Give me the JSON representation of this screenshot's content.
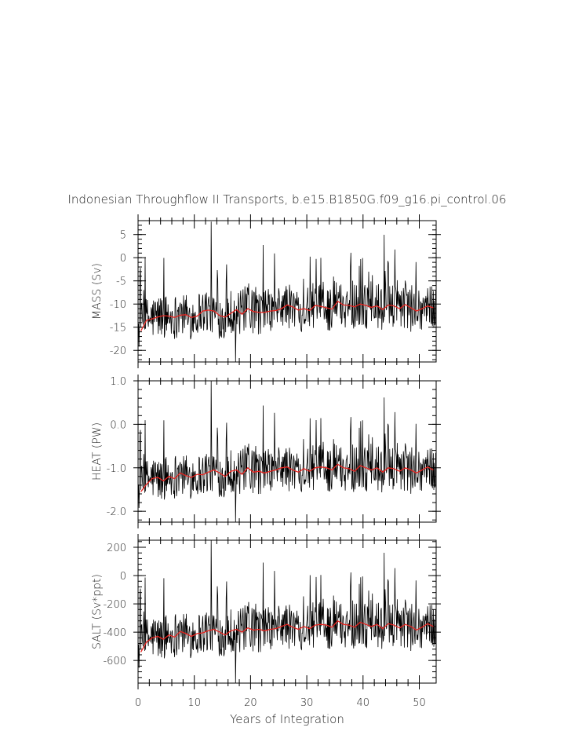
{
  "chart_data": {
    "type": "line",
    "title": "Indonesian Throughflow II Transports, b.e15.B1850G.f09_g16.pi_control.06",
    "xlabel": "Years of Integration",
    "xlim": [
      0,
      53
    ],
    "xticks": [
      "0",
      "10",
      "20",
      "30",
      "40",
      "50"
    ],
    "colors": {
      "monthly": "#000000",
      "annual": "#e8231f"
    },
    "panels": [
      {
        "ylabel": "MASS (Sv)",
        "ylim": [
          -22.5,
          8
        ],
        "yticks": [
          "5",
          "0",
          "-5",
          "-10",
          "-15",
          "-20"
        ],
        "ytick_values": [
          5,
          0,
          -5,
          -10,
          -15,
          -20
        ],
        "monthly_range": [
          -22.5,
          7.8
        ],
        "annual_mean": [
          -15.8,
          -13.5,
          -13.2,
          -12.8,
          -12.5,
          -12.6,
          -12.9,
          -12.4,
          -12.3,
          -12.9,
          -12.6,
          -11.5,
          -11.3,
          -11.5,
          -12.5,
          -12.8,
          -12.0,
          -11.2,
          -12.2,
          -11.0,
          -11.6,
          -11.8,
          -11.8,
          -11.5,
          -11.4,
          -11.0,
          -10.2,
          -10.6,
          -11.3,
          -11.0,
          -11.4,
          -10.3,
          -10.5,
          -10.8,
          -11.1,
          -9.4,
          -10.2,
          -10.3,
          -10.6,
          -10.0,
          -10.3,
          -10.7,
          -10.4,
          -11.2,
          -10.2,
          -10.4,
          -11.0,
          -10.1,
          -10.8,
          -11.5,
          -11.0,
          -10.4,
          -10.8
        ]
      },
      {
        "ylabel": "HEAT (PW)",
        "ylim": [
          -2.25,
          1.0
        ],
        "yticks": [
          "1.0",
          "0.0",
          "-1.0",
          "-2.0"
        ],
        "ytick_values": [
          1.0,
          0.0,
          -1.0,
          -2.0
        ],
        "monthly_range": [
          -2.25,
          1.0
        ],
        "annual_mean": [
          -1.55,
          -1.38,
          -1.25,
          -1.22,
          -1.3,
          -1.2,
          -1.25,
          -1.12,
          -1.18,
          -1.22,
          -1.15,
          -1.16,
          -1.1,
          -1.05,
          -1.12,
          -1.2,
          -1.08,
          -1.05,
          -1.15,
          -1.0,
          -1.1,
          -1.08,
          -1.12,
          -1.08,
          -1.05,
          -1.0,
          -0.98,
          -1.05,
          -1.1,
          -1.02,
          -1.08,
          -1.0,
          -0.98,
          -1.0,
          -1.05,
          -0.92,
          -1.0,
          -1.02,
          -1.08,
          -0.95,
          -1.0,
          -1.05,
          -1.0,
          -1.1,
          -1.0,
          -1.02,
          -1.08,
          -1.0,
          -1.05,
          -1.12,
          -1.05,
          -0.98,
          -1.05
        ]
      },
      {
        "ylabel": "SALT (Sv*ppt)",
        "ylim": [
          -760,
          250
        ],
        "yticks": [
          "200",
          "0",
          "-200",
          "-400",
          "-600"
        ],
        "ytick_values": [
          200,
          0,
          -200,
          -400,
          -600
        ],
        "monthly_range": [
          -760,
          250
        ],
        "annual_mean": [
          -540,
          -470,
          -440,
          -430,
          -450,
          -420,
          -435,
          -395,
          -410,
          -430,
          -410,
          -405,
          -390,
          -380,
          -400,
          -420,
          -390,
          -380,
          -400,
          -370,
          -385,
          -380,
          -390,
          -380,
          -375,
          -360,
          -345,
          -365,
          -380,
          -360,
          -375,
          -350,
          -345,
          -350,
          -365,
          -320,
          -345,
          -350,
          -365,
          -330,
          -345,
          -360,
          -345,
          -375,
          -340,
          -350,
          -370,
          -345,
          -360,
          -385,
          -365,
          -340,
          -360
        ]
      }
    ]
  }
}
